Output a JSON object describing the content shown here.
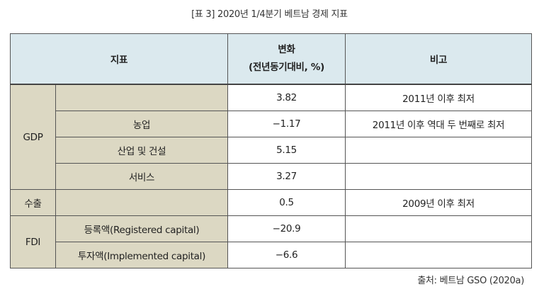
{
  "caption": "[표 3] 2020년 1/4분기 베트남 경제 지표",
  "source": "출처: 베트남 GSO (2020a)",
  "header": {
    "indicator": "지표",
    "change_line1": "변화",
    "change_line2": "(전년동기대비, %)",
    "note": "비고"
  },
  "rows": [
    {
      "group": "GDP",
      "sub": "",
      "value": "3.82",
      "note": "2011년 이후 최저"
    },
    {
      "group": "GDP",
      "sub": "농업",
      "value": "−1.17",
      "note": "2011년 이후 역대 두 번째로 최저"
    },
    {
      "group": "GDP",
      "sub": "산업 및 건설",
      "value": "5.15",
      "note": ""
    },
    {
      "group": "GDP",
      "sub": "서비스",
      "value": "3.27",
      "note": ""
    },
    {
      "group": "수출",
      "sub": "",
      "value": "0.5",
      "note": "2009년 이후 최저"
    },
    {
      "group": "FDI",
      "sub": "등록액(Registered capital)",
      "value": "−20.9",
      "note": ""
    },
    {
      "group": "FDI",
      "sub": "투자액(Implemented capital)",
      "value": "−6.6",
      "note": ""
    }
  ]
}
